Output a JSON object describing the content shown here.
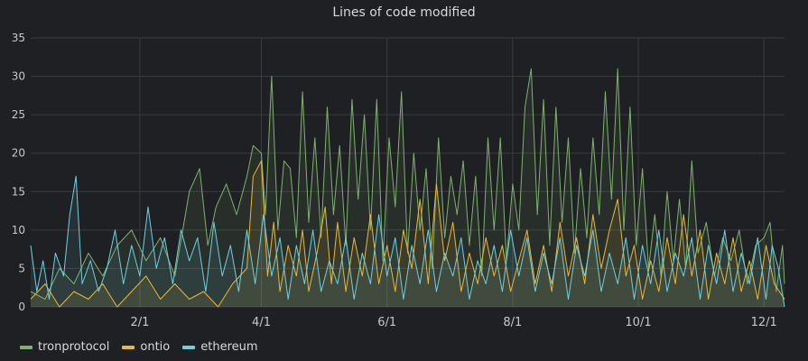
{
  "chart_data": {
    "type": "line",
    "title": "Lines of code modified",
    "xlabel": "",
    "ylabel": "",
    "x_range": [
      "2017-12-10",
      "2018-12-11"
    ],
    "x_ticks": [
      {
        "date": "2018-02-01",
        "label": "2/1"
      },
      {
        "date": "2018-04-01",
        "label": "4/1"
      },
      {
        "date": "2018-06-01",
        "label": "6/1"
      },
      {
        "date": "2018-08-01",
        "label": "8/1"
      },
      {
        "date": "2018-10-01",
        "label": "10/1"
      },
      {
        "date": "2018-12-01",
        "label": "12/1"
      }
    ],
    "ylim": [
      0,
      35
    ],
    "y_ticks": [
      0,
      5,
      10,
      15,
      20,
      25,
      30,
      35
    ],
    "grid": true,
    "legend_position": "bottom-left",
    "series": [
      {
        "name": "tronprotocol",
        "color": "#7eb26d",
        "points": [
          [
            "2017-12-10",
            2
          ],
          [
            "2017-12-17",
            1
          ],
          [
            "2017-12-24",
            5
          ],
          [
            "2017-12-31",
            3
          ],
          [
            "2018-01-07",
            7
          ],
          [
            "2018-01-14",
            4
          ],
          [
            "2018-01-21",
            8
          ],
          [
            "2018-01-28",
            10
          ],
          [
            "2018-02-04",
            6
          ],
          [
            "2018-02-11",
            9
          ],
          [
            "2018-02-18",
            4
          ],
          [
            "2018-02-25",
            15
          ],
          [
            "2018-03-02",
            18
          ],
          [
            "2018-03-06",
            8
          ],
          [
            "2018-03-10",
            13
          ],
          [
            "2018-03-15",
            16
          ],
          [
            "2018-03-20",
            12
          ],
          [
            "2018-03-25",
            17
          ],
          [
            "2018-03-28",
            21
          ],
          [
            "2018-04-01",
            20
          ],
          [
            "2018-04-03",
            12
          ],
          [
            "2018-04-06",
            30
          ],
          [
            "2018-04-09",
            10
          ],
          [
            "2018-04-12",
            19
          ],
          [
            "2018-04-15",
            18
          ],
          [
            "2018-04-18",
            9
          ],
          [
            "2018-04-21",
            28
          ],
          [
            "2018-04-24",
            11
          ],
          [
            "2018-04-27",
            22
          ],
          [
            "2018-04-30",
            9
          ],
          [
            "2018-05-03",
            26
          ],
          [
            "2018-05-06",
            12
          ],
          [
            "2018-05-09",
            21
          ],
          [
            "2018-05-12",
            8
          ],
          [
            "2018-05-15",
            27
          ],
          [
            "2018-05-18",
            14
          ],
          [
            "2018-05-21",
            25
          ],
          [
            "2018-05-24",
            10
          ],
          [
            "2018-05-27",
            27
          ],
          [
            "2018-05-30",
            6
          ],
          [
            "2018-06-02",
            22
          ],
          [
            "2018-06-05",
            13
          ],
          [
            "2018-06-08",
            28
          ],
          [
            "2018-06-11",
            7
          ],
          [
            "2018-06-14",
            20
          ],
          [
            "2018-06-17",
            10
          ],
          [
            "2018-06-20",
            18
          ],
          [
            "2018-06-23",
            5
          ],
          [
            "2018-06-26",
            22
          ],
          [
            "2018-06-29",
            9
          ],
          [
            "2018-07-02",
            17
          ],
          [
            "2018-07-05",
            12
          ],
          [
            "2018-07-08",
            19
          ],
          [
            "2018-07-11",
            8
          ],
          [
            "2018-07-14",
            17
          ],
          [
            "2018-07-17",
            4
          ],
          [
            "2018-07-20",
            22
          ],
          [
            "2018-07-23",
            10
          ],
          [
            "2018-07-26",
            22
          ],
          [
            "2018-07-29",
            6
          ],
          [
            "2018-08-01",
            16
          ],
          [
            "2018-08-04",
            10
          ],
          [
            "2018-08-07",
            26
          ],
          [
            "2018-08-10",
            31
          ],
          [
            "2018-08-13",
            12
          ],
          [
            "2018-08-16",
            27
          ],
          [
            "2018-08-19",
            8
          ],
          [
            "2018-08-22",
            26
          ],
          [
            "2018-08-25",
            11
          ],
          [
            "2018-08-28",
            22
          ],
          [
            "2018-08-31",
            7
          ],
          [
            "2018-09-03",
            18
          ],
          [
            "2018-09-06",
            9
          ],
          [
            "2018-09-09",
            22
          ],
          [
            "2018-09-12",
            12
          ],
          [
            "2018-09-15",
            28
          ],
          [
            "2018-09-18",
            14
          ],
          [
            "2018-09-21",
            31
          ],
          [
            "2018-09-24",
            10
          ],
          [
            "2018-09-27",
            26
          ],
          [
            "2018-09-30",
            8
          ],
          [
            "2018-10-03",
            18
          ],
          [
            "2018-10-06",
            5
          ],
          [
            "2018-10-09",
            12
          ],
          [
            "2018-10-12",
            4
          ],
          [
            "2018-10-15",
            15
          ],
          [
            "2018-10-18",
            6
          ],
          [
            "2018-10-21",
            14
          ],
          [
            "2018-10-24",
            5
          ],
          [
            "2018-10-27",
            19
          ],
          [
            "2018-10-30",
            7
          ],
          [
            "2018-11-03",
            11
          ],
          [
            "2018-11-07",
            4
          ],
          [
            "2018-11-11",
            9
          ],
          [
            "2018-11-15",
            6
          ],
          [
            "2018-11-19",
            10
          ],
          [
            "2018-11-23",
            3
          ],
          [
            "2018-11-27",
            8
          ],
          [
            "2018-12-01",
            9
          ],
          [
            "2018-12-04",
            11
          ],
          [
            "2018-12-07",
            2
          ],
          [
            "2018-12-10",
            8
          ],
          [
            "2018-12-11",
            3
          ]
        ]
      },
      {
        "name": "ontio",
        "color": "#eab839",
        "points": [
          [
            "2017-12-10",
            1
          ],
          [
            "2017-12-17",
            3
          ],
          [
            "2017-12-24",
            0
          ],
          [
            "2017-12-31",
            2
          ],
          [
            "2018-01-07",
            1
          ],
          [
            "2018-01-14",
            3
          ],
          [
            "2018-01-21",
            0
          ],
          [
            "2018-01-28",
            2
          ],
          [
            "2018-02-04",
            4
          ],
          [
            "2018-02-11",
            1
          ],
          [
            "2018-02-18",
            3
          ],
          [
            "2018-02-25",
            1
          ],
          [
            "2018-03-04",
            2
          ],
          [
            "2018-03-11",
            0
          ],
          [
            "2018-03-18",
            3
          ],
          [
            "2018-03-25",
            5
          ],
          [
            "2018-03-28",
            17
          ],
          [
            "2018-04-01",
            19
          ],
          [
            "2018-04-04",
            4
          ],
          [
            "2018-04-07",
            11
          ],
          [
            "2018-04-10",
            2
          ],
          [
            "2018-04-14",
            8
          ],
          [
            "2018-04-18",
            4
          ],
          [
            "2018-04-21",
            10
          ],
          [
            "2018-04-24",
            2
          ],
          [
            "2018-04-28",
            7
          ],
          [
            "2018-05-02",
            13
          ],
          [
            "2018-05-05",
            3
          ],
          [
            "2018-05-08",
            11
          ],
          [
            "2018-05-12",
            2
          ],
          [
            "2018-05-16",
            9
          ],
          [
            "2018-05-20",
            4
          ],
          [
            "2018-05-24",
            12
          ],
          [
            "2018-05-28",
            3
          ],
          [
            "2018-06-01",
            8
          ],
          [
            "2018-06-05",
            2
          ],
          [
            "2018-06-09",
            10
          ],
          [
            "2018-06-13",
            5
          ],
          [
            "2018-06-17",
            14
          ],
          [
            "2018-06-21",
            3
          ],
          [
            "2018-06-25",
            16
          ],
          [
            "2018-06-29",
            6
          ],
          [
            "2018-07-03",
            11
          ],
          [
            "2018-07-07",
            2
          ],
          [
            "2018-07-11",
            7
          ],
          [
            "2018-07-15",
            3
          ],
          [
            "2018-07-19",
            9
          ],
          [
            "2018-07-23",
            4
          ],
          [
            "2018-07-27",
            8
          ],
          [
            "2018-07-31",
            2
          ],
          [
            "2018-08-04",
            6
          ],
          [
            "2018-08-08",
            10
          ],
          [
            "2018-08-12",
            3
          ],
          [
            "2018-08-16",
            8
          ],
          [
            "2018-08-20",
            2
          ],
          [
            "2018-08-24",
            11
          ],
          [
            "2018-08-28",
            4
          ],
          [
            "2018-09-01",
            9
          ],
          [
            "2018-09-05",
            3
          ],
          [
            "2018-09-09",
            12
          ],
          [
            "2018-09-13",
            5
          ],
          [
            "2018-09-17",
            10
          ],
          [
            "2018-09-21",
            14
          ],
          [
            "2018-09-25",
            4
          ],
          [
            "2018-09-29",
            8
          ],
          [
            "2018-10-03",
            1
          ],
          [
            "2018-10-07",
            6
          ],
          [
            "2018-10-11",
            2
          ],
          [
            "2018-10-15",
            9
          ],
          [
            "2018-10-19",
            3
          ],
          [
            "2018-10-23",
            12
          ],
          [
            "2018-10-27",
            4
          ],
          [
            "2018-10-31",
            10
          ],
          [
            "2018-11-04",
            1
          ],
          [
            "2018-11-08",
            7
          ],
          [
            "2018-11-12",
            3
          ],
          [
            "2018-11-16",
            9
          ],
          [
            "2018-11-20",
            2
          ],
          [
            "2018-11-24",
            6
          ],
          [
            "2018-11-28",
            1
          ],
          [
            "2018-12-02",
            8
          ],
          [
            "2018-12-06",
            3
          ],
          [
            "2018-12-11",
            1
          ]
        ]
      },
      {
        "name": "ethereum",
        "color": "#6ed0e0",
        "points": [
          [
            "2017-12-10",
            8
          ],
          [
            "2017-12-13",
            2
          ],
          [
            "2017-12-16",
            6
          ],
          [
            "2017-12-19",
            1
          ],
          [
            "2017-12-22",
            7
          ],
          [
            "2017-12-26",
            4
          ],
          [
            "2017-12-29",
            12
          ],
          [
            "2018-01-01",
            17
          ],
          [
            "2018-01-04",
            3
          ],
          [
            "2018-01-08",
            6
          ],
          [
            "2018-01-12",
            2
          ],
          [
            "2018-01-16",
            5
          ],
          [
            "2018-01-20",
            10
          ],
          [
            "2018-01-24",
            3
          ],
          [
            "2018-01-28",
            8
          ],
          [
            "2018-02-01",
            4
          ],
          [
            "2018-02-05",
            13
          ],
          [
            "2018-02-09",
            5
          ],
          [
            "2018-02-13",
            9
          ],
          [
            "2018-02-17",
            3
          ],
          [
            "2018-02-21",
            10
          ],
          [
            "2018-02-25",
            6
          ],
          [
            "2018-03-01",
            9
          ],
          [
            "2018-03-05",
            2
          ],
          [
            "2018-03-09",
            11
          ],
          [
            "2018-03-13",
            4
          ],
          [
            "2018-03-17",
            8
          ],
          [
            "2018-03-21",
            2
          ],
          [
            "2018-03-25",
            10
          ],
          [
            "2018-03-29",
            3
          ],
          [
            "2018-04-02",
            12
          ],
          [
            "2018-04-06",
            4
          ],
          [
            "2018-04-10",
            9
          ],
          [
            "2018-04-14",
            1
          ],
          [
            "2018-04-18",
            8
          ],
          [
            "2018-04-22",
            3
          ],
          [
            "2018-04-26",
            10
          ],
          [
            "2018-04-30",
            2
          ],
          [
            "2018-05-04",
            6
          ],
          [
            "2018-05-08",
            3
          ],
          [
            "2018-05-12",
            9
          ],
          [
            "2018-05-16",
            1
          ],
          [
            "2018-05-20",
            7
          ],
          [
            "2018-05-24",
            3
          ],
          [
            "2018-05-28",
            12
          ],
          [
            "2018-06-01",
            4
          ],
          [
            "2018-06-05",
            9
          ],
          [
            "2018-06-09",
            1
          ],
          [
            "2018-06-13",
            8
          ],
          [
            "2018-06-17",
            3
          ],
          [
            "2018-06-21",
            10
          ],
          [
            "2018-06-25",
            2
          ],
          [
            "2018-06-29",
            7
          ],
          [
            "2018-07-03",
            4
          ],
          [
            "2018-07-07",
            9
          ],
          [
            "2018-07-11",
            1
          ],
          [
            "2018-07-15",
            6
          ],
          [
            "2018-07-19",
            3
          ],
          [
            "2018-07-23",
            8
          ],
          [
            "2018-07-27",
            2
          ],
          [
            "2018-07-31",
            10
          ],
          [
            "2018-08-04",
            4
          ],
          [
            "2018-08-08",
            9
          ],
          [
            "2018-08-12",
            2
          ],
          [
            "2018-08-16",
            7
          ],
          [
            "2018-08-20",
            3
          ],
          [
            "2018-08-24",
            9
          ],
          [
            "2018-08-28",
            1
          ],
          [
            "2018-09-01",
            8
          ],
          [
            "2018-09-05",
            4
          ],
          [
            "2018-09-09",
            10
          ],
          [
            "2018-09-13",
            2
          ],
          [
            "2018-09-17",
            7
          ],
          [
            "2018-09-21",
            3
          ],
          [
            "2018-09-25",
            9
          ],
          [
            "2018-09-29",
            1
          ],
          [
            "2018-10-03",
            8
          ],
          [
            "2018-10-07",
            3
          ],
          [
            "2018-10-11",
            10
          ],
          [
            "2018-10-15",
            2
          ],
          [
            "2018-10-19",
            7
          ],
          [
            "2018-10-23",
            4
          ],
          [
            "2018-10-27",
            9
          ],
          [
            "2018-10-31",
            1
          ],
          [
            "2018-11-04",
            8
          ],
          [
            "2018-11-08",
            3
          ],
          [
            "2018-11-12",
            10
          ],
          [
            "2018-11-16",
            2
          ],
          [
            "2018-11-20",
            7
          ],
          [
            "2018-11-24",
            3
          ],
          [
            "2018-11-28",
            9
          ],
          [
            "2018-12-02",
            1
          ],
          [
            "2018-12-05",
            8
          ],
          [
            "2018-12-08",
            5
          ],
          [
            "2018-12-11",
            0
          ]
        ]
      }
    ]
  }
}
